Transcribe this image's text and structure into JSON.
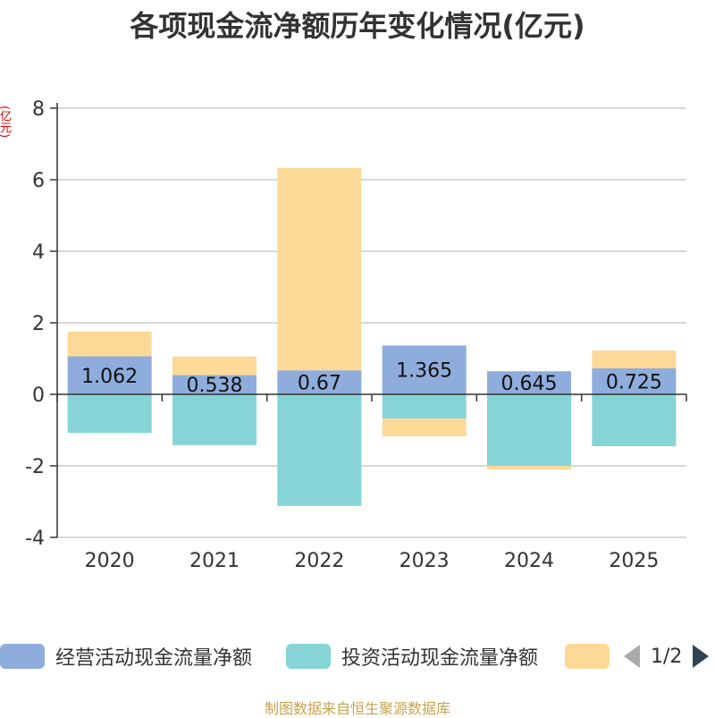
{
  "chart_data": {
    "type": "bar",
    "title": "各项现金流净额历年变化情况(亿元)",
    "ylabel": "(亿元)",
    "categories": [
      "2020",
      "2021",
      "2022",
      "2023",
      "2024",
      "2025"
    ],
    "ylim": [
      -4,
      8
    ],
    "yticks": [
      -4,
      -2,
      0,
      2,
      4,
      6,
      8
    ],
    "stacked": true,
    "series": [
      {
        "name": "经营活动现金流量净额",
        "color": "#8eaddc",
        "values": [
          1.062,
          0.538,
          0.67,
          1.365,
          0.645,
          0.725
        ],
        "labels": [
          "1.062",
          "0.538",
          "0.67",
          "1.365",
          "0.645",
          "0.725"
        ]
      },
      {
        "name": "投资活动现金流量净额",
        "color": "#86d4d6",
        "values": [
          -1.08,
          -1.42,
          -3.12,
          -0.68,
          -2.0,
          -1.45
        ]
      },
      {
        "name": "",
        "color": "#fdd998",
        "values": [
          0.69,
          0.52,
          5.66,
          -0.5,
          -0.1,
          0.5
        ]
      }
    ],
    "legend_position": "bottom",
    "legend_pager": "1/2"
  },
  "source": "制图数据来自恒生聚源数据库"
}
